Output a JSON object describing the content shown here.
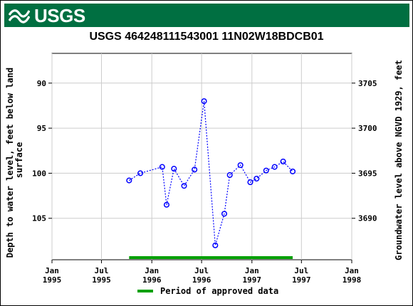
{
  "header": {
    "logo_text": "USGS",
    "brand_color": "#006f41",
    "logo_icon": "usgs-wave-icon"
  },
  "chart_data": {
    "type": "scatter",
    "title": "USGS 464248111543001 11N02W18BDCB01",
    "ylabel_left": "Depth to water level, feet below land\nsurface",
    "ylabel_right": "Groundwater level above NGVD 1929, feet",
    "y_left_range": [
      109.6,
      86.7
    ],
    "y_right_range": [
      3685.4,
      3708.3
    ],
    "y_left_ticks": [
      90,
      95,
      100,
      105
    ],
    "y_right_ticks": [
      3705,
      3700,
      3695,
      3690
    ],
    "x_range": [
      "1995-01-01",
      "1998-01-01"
    ],
    "x_ticks": [
      {
        "date": "1995-01-01",
        "label": [
          "Jan",
          "1995"
        ]
      },
      {
        "date": "1995-07-01",
        "label": [
          "Jul",
          "1995"
        ]
      },
      {
        "date": "1996-01-01",
        "label": [
          "Jan",
          "1996"
        ]
      },
      {
        "date": "1996-07-01",
        "label": [
          "Jul",
          "1996"
        ]
      },
      {
        "date": "1997-01-01",
        "label": [
          "Jan",
          "1997"
        ]
      },
      {
        "date": "1997-07-01",
        "label": [
          "Jul",
          "1997"
        ]
      },
      {
        "date": "1998-01-01",
        "label": [
          "Jan",
          "1998"
        ]
      }
    ],
    "series": [
      {
        "color": "#0000ff",
        "points": [
          {
            "x": "1995-10-10",
            "y": 100.8
          },
          {
            "x": "1995-11-20",
            "y": 100.0
          },
          {
            "x": "1996-02-08",
            "y": 99.3
          },
          {
            "x": "1996-02-24",
            "y": 103.5
          },
          {
            "x": "1996-03-22",
            "y": 99.5
          },
          {
            "x": "1996-04-28",
            "y": 101.4
          },
          {
            "x": "1996-06-05",
            "y": 99.6
          },
          {
            "x": "1996-07-10",
            "y": 92.0
          },
          {
            "x": "1996-08-20",
            "y": 108.0
          },
          {
            "x": "1996-09-22",
            "y": 104.5
          },
          {
            "x": "1996-10-12",
            "y": 100.2
          },
          {
            "x": "1996-11-20",
            "y": 99.1
          },
          {
            "x": "1996-12-26",
            "y": 101.0
          },
          {
            "x": "1997-01-18",
            "y": 100.6
          },
          {
            "x": "1997-02-22",
            "y": 99.7
          },
          {
            "x": "1997-03-25",
            "y": 99.3
          },
          {
            "x": "1997-04-25",
            "y": 98.7
          },
          {
            "x": "1997-05-30",
            "y": 99.8
          }
        ]
      }
    ],
    "approved_period": {
      "start": "1995-10-10",
      "end": "1997-05-30",
      "color": "#00a000"
    },
    "legend": {
      "label": "Period of approved data",
      "placement": "bottom"
    },
    "grid": true
  }
}
